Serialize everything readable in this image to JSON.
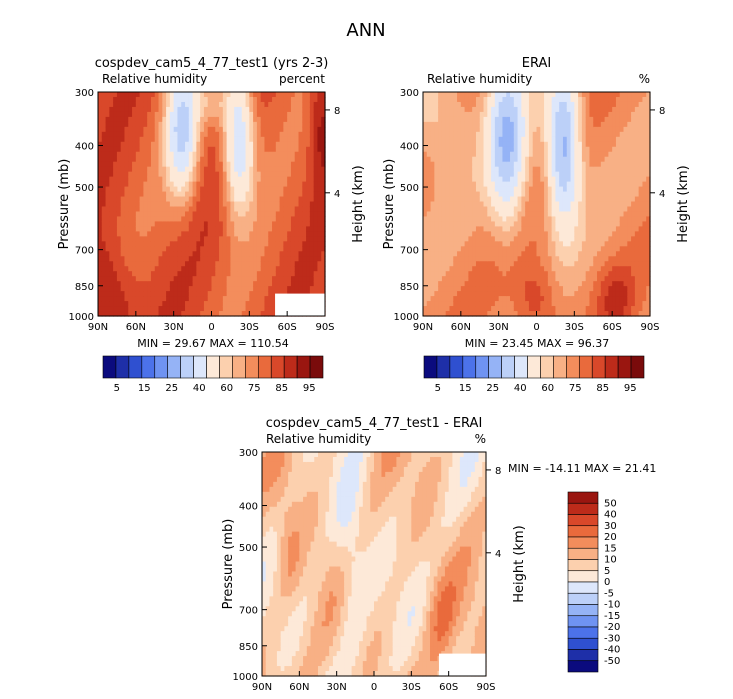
{
  "figure": {
    "title": "ANN"
  },
  "palettes": {
    "full": [
      "#0b0b7e",
      "#1e2fa8",
      "#2f50d0",
      "#4c72ea",
      "#6f93f2",
      "#95b3f6",
      "#bcd0f8",
      "#dde7fb",
      "#fde9d8",
      "#fcd0ae",
      "#f8b085",
      "#f38d5c",
      "#e96a3c",
      "#d9482a",
      "#bd2b1a",
      "#9a1610",
      "#7a0b0b"
    ],
    "short": [
      "#0b0b7e",
      "#1e2fa8",
      "#2f50d0",
      "#4c72ea",
      "#6f93f2",
      "#95b3f6",
      "#bcd0f8",
      "#dde7fb",
      "#fde9d8",
      "#fcd0ae",
      "#f8b085",
      "#f38d5c",
      "#e96a3c",
      "#d9482a",
      "#bd2b1a",
      "#9a1610",
      "#7a0b0b"
    ]
  },
  "chart_data": [
    {
      "type": "heatmap",
      "title": "cospdev_cam5_4_77_test1 (yrs 2-3)",
      "subtitle": "Relative humidity",
      "units": "percent",
      "xlabel": "",
      "ylabel": "Pressure (mb)",
      "ylabel_right": "Height (km)",
      "x_ticks": [
        "90N",
        "60N",
        "30N",
        "0",
        "30S",
        "60S",
        "90S"
      ],
      "y_ticks": [
        "300",
        "400",
        "500",
        "700",
        "850",
        "1000"
      ],
      "y_ticks_right": [
        "8",
        "4"
      ],
      "x_range": [
        90,
        -90
      ],
      "y_range": [
        1000,
        300
      ],
      "y_scale": "log",
      "min_label": "MIN =  29.67   MAX = 110.54",
      "colorbar_labels": [
        "5",
        "15",
        "25",
        "40",
        "60",
        "75",
        "85",
        "95"
      ],
      "z_min": 29.67,
      "z_max": 110.54
    },
    {
      "type": "heatmap",
      "title": "ERAI",
      "subtitle": "Relative humidity",
      "units": "%",
      "xlabel": "",
      "ylabel": "Pressure (mb)",
      "ylabel_right": "Height (km)",
      "x_ticks": [
        "90N",
        "60N",
        "30N",
        "0",
        "30S",
        "60S",
        "90S"
      ],
      "y_ticks": [
        "300",
        "400",
        "500",
        "700",
        "850",
        "1000"
      ],
      "y_ticks_right": [
        "8",
        "4"
      ],
      "x_range": [
        90,
        -90
      ],
      "y_range": [
        1000,
        300
      ],
      "y_scale": "log",
      "min_label": "MIN =  23.45   MAX =  96.37",
      "colorbar_labels": [
        "5",
        "15",
        "25",
        "40",
        "60",
        "75",
        "85",
        "95"
      ],
      "z_min": 23.45,
      "z_max": 96.37
    },
    {
      "type": "heatmap",
      "title": "cospdev_cam5_4_77_test1 - ERAI",
      "subtitle": "Relative humidity",
      "units": "%",
      "xlabel": "",
      "ylabel": "Pressure (mb)",
      "ylabel_right": "Height (km)",
      "x_ticks": [
        "90N",
        "60N",
        "30N",
        "0",
        "30S",
        "60S",
        "90S"
      ],
      "y_ticks": [
        "300",
        "400",
        "500",
        "700",
        "850",
        "1000"
      ],
      "y_ticks_right": [
        "8",
        "4"
      ],
      "x_range": [
        90,
        -90
      ],
      "y_range": [
        1000,
        300
      ],
      "y_scale": "log",
      "min_label": "MIN = -14.11   MAX =  21.41",
      "colorbar_labels": [
        "50",
        "40",
        "30",
        "20",
        "15",
        "10",
        "5",
        "0",
        "-5",
        "-10",
        "-15",
        "-20",
        "-30",
        "-40",
        "-50"
      ],
      "z_min": -14.11,
      "z_max": 21.41
    }
  ]
}
